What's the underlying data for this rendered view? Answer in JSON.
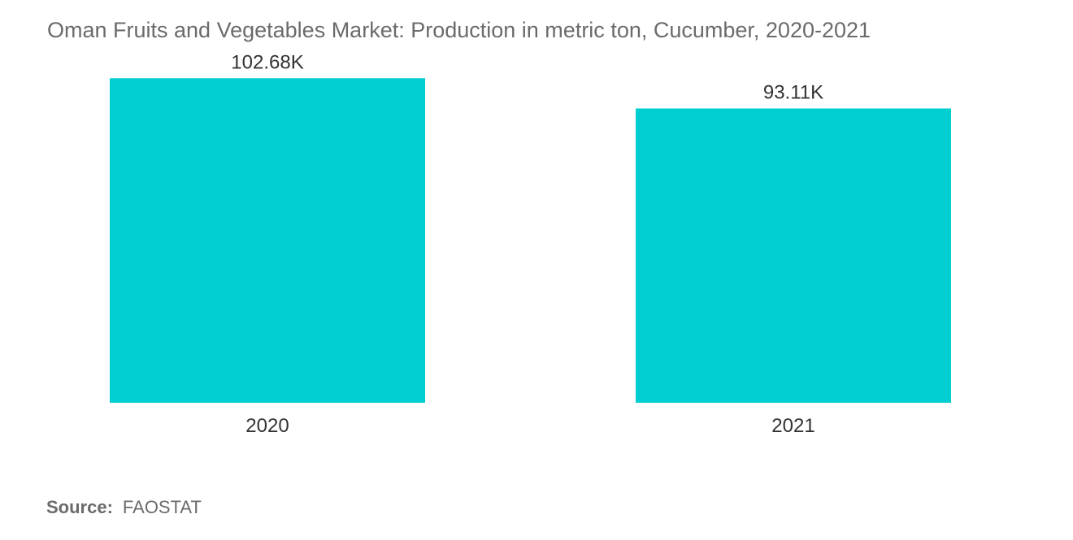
{
  "chart_data": {
    "type": "bar",
    "title": "Oman Fruits and Vegetables Market: Production in metric ton, Cucumber, 2020-2021",
    "categories": [
      "2020",
      "2021"
    ],
    "values": [
      102680,
      93110
    ],
    "data_labels": [
      "102.68K",
      "93.11K"
    ],
    "xlabel": "",
    "ylabel": "",
    "ylim": [
      0,
      112000
    ],
    "grid": false,
    "legend": "none"
  },
  "source": {
    "label": "Source:",
    "value": "FAOSTAT"
  },
  "colors": {
    "bar": "#00ced1",
    "text": "#333333",
    "muted": "#6b6b6b"
  }
}
